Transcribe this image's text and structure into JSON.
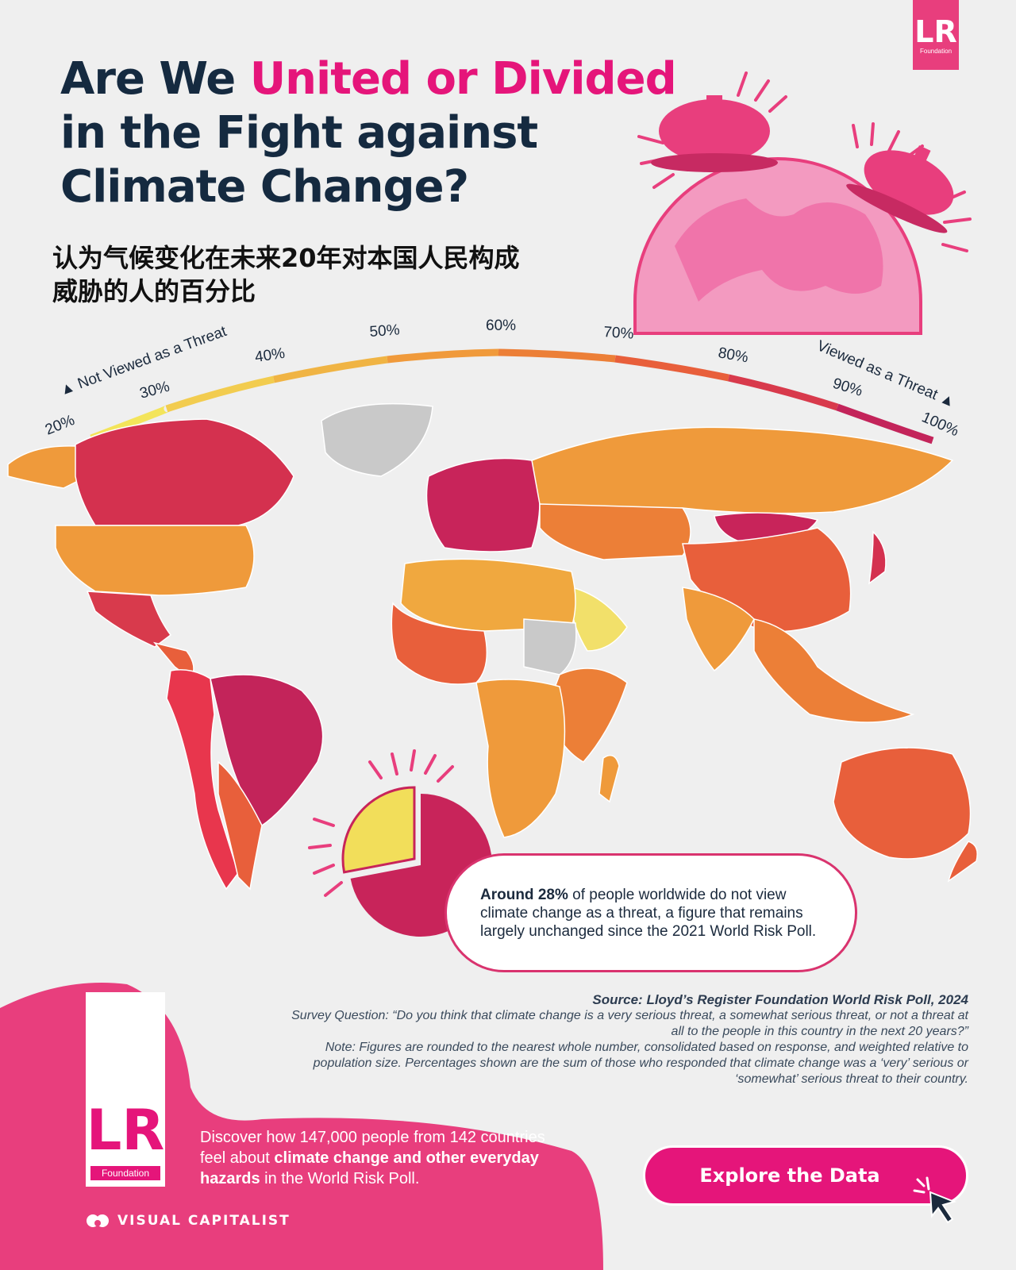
{
  "header": {
    "title_line1_a": "Are We ",
    "title_line1_b": "United or Divided",
    "title_line2": "in the Fight against",
    "title_line3": "Climate Change?",
    "subtitle_line1": "认为气候变化在未来20年对本国人民构成",
    "subtitle_line2": "威胁的人的百分比"
  },
  "logo_top": {
    "letters": "LR",
    "sub": "Foundation"
  },
  "legend": {
    "left_label": "Not Viewed as a Threat",
    "right_label": "Viewed as a Threat",
    "ticks": [
      "20%",
      "30%",
      "40%",
      "50%",
      "60%",
      "70%",
      "80%",
      "90%",
      "100%"
    ],
    "colors": [
      "#f3e45a",
      "#f2cc4f",
      "#f0b444",
      "#f09a3b",
      "#ec7f37",
      "#e85f3b",
      "#d83a4c",
      "#c3245a"
    ]
  },
  "callout": {
    "bold": "Around 28%",
    "text": " of people worldwide do not view climate change as a threat, a figure that remains largely unchanged since the 2021 World Risk Poll."
  },
  "pie": {
    "not_threat_pct": 28,
    "colors": {
      "not_threat": "#f2de5a",
      "threat": "#c8245a"
    }
  },
  "source": {
    "title": "Source: Lloyd’s Register Foundation World Risk Poll, 2024",
    "question": "Survey Question: “Do you think that climate change is a very serious threat, a somewhat serious threat, or not a threat at all to the people in this country in the next 20 years?”",
    "note": "Note: Figures are rounded to the nearest whole number, consolidated based on response, and weighted relative to population size. Percentages shown are the sum of those who responded that climate change was a ‘very’ serious or ‘somewhat’ serious threat to their country."
  },
  "footer": {
    "logo_letters": "LR",
    "logo_sub": "Foundation",
    "discover_a": "Discover how 147,000 people from 142 countries feel about ",
    "discover_bold": "climate change and other everyday hazards",
    "discover_b": " in the World Risk Poll.",
    "brand": "VISUAL CAPITALIST",
    "cta": "Explore the Data"
  },
  "map_regions": [
    {
      "name": "canada",
      "color": "#d4314f"
    },
    {
      "name": "alaska",
      "color": "#ef9a3b"
    },
    {
      "name": "greenland",
      "color": "#c9c9c9"
    },
    {
      "name": "usa",
      "color": "#ef9a3b"
    },
    {
      "name": "mexico",
      "color": "#d83a4c"
    },
    {
      "name": "central-america",
      "color": "#e85f3b"
    },
    {
      "name": "brazil",
      "color": "#c3245a"
    },
    {
      "name": "andes",
      "color": "#e8364d"
    },
    {
      "name": "southern-cone",
      "color": "#e85f3b"
    },
    {
      "name": "europe",
      "color": "#c8245a"
    },
    {
      "name": "russia",
      "color": "#ef9a3b"
    },
    {
      "name": "central-asia",
      "color": "#ec7f37"
    },
    {
      "name": "china",
      "color": "#e85f3b"
    },
    {
      "name": "mongolia",
      "color": "#c8245a"
    },
    {
      "name": "india",
      "color": "#ef9a3b"
    },
    {
      "name": "saudi-arabia",
      "color": "#f2e06a"
    },
    {
      "name": "north-africa",
      "color": "#f0a83f"
    },
    {
      "name": "west-africa",
      "color": "#e85f3b"
    },
    {
      "name": "sahel-gray",
      "color": "#c9c9c9"
    },
    {
      "name": "east-africa",
      "color": "#ec7f37"
    },
    {
      "name": "southern-africa",
      "color": "#ef9a3b"
    },
    {
      "name": "southeast-asia",
      "color": "#ec7f37"
    },
    {
      "name": "japan",
      "color": "#d4314f"
    },
    {
      "name": "australia",
      "color": "#e85f3b"
    },
    {
      "name": "new-zealand",
      "color": "#e85f3b"
    },
    {
      "name": "madagascar",
      "color": "#ef9a3b"
    }
  ]
}
